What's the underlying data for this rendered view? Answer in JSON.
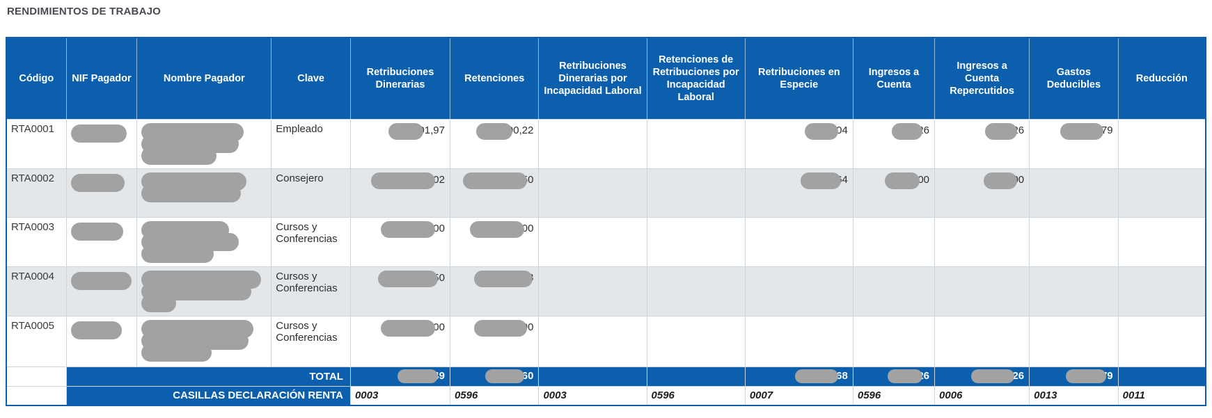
{
  "page_title": "RENDIMIENTOS DE TRABAJO",
  "colors": {
    "header_blue": "#0c5fad",
    "row_alt_gray": "#e3e7ea",
    "redaction_gray": "#a2a2a2",
    "grid_line": "#ccd5dd",
    "title_text": "#474c54",
    "body_text": "#2e2e2e"
  },
  "table": {
    "columns": [
      {
        "id": "codigo",
        "label": "Código"
      },
      {
        "id": "nif",
        "label": "NIF Pagador"
      },
      {
        "id": "nombre",
        "label": "Nombre Pagador"
      },
      {
        "id": "clave",
        "label": "Clave"
      },
      {
        "id": "ret_dinerarias",
        "label": "Retribuciones Dinerarias"
      },
      {
        "id": "retenciones",
        "label": "Retenciones"
      },
      {
        "id": "ret_din_incap",
        "label": "Retribuciones Dinerarias por Incapacidad Laboral"
      },
      {
        "id": "retenciones_incap",
        "label": "Retenciones de Retribuciones por Incapacidad Laboral"
      },
      {
        "id": "ret_especie",
        "label": "Retribuciones en Especie"
      },
      {
        "id": "ingresos_cuenta",
        "label": "Ingresos a Cuenta"
      },
      {
        "id": "ingresos_cuenta_rep",
        "label": "Ingresos a Cuenta Repercutidos"
      },
      {
        "id": "gastos_deducibles",
        "label": "Gastos Deducibles"
      },
      {
        "id": "reduccion",
        "label": "Reducción"
      }
    ],
    "rows": [
      {
        "codigo": "RTA0001",
        "nif_redacted": [
          "92%"
        ],
        "nombre_redacted": [
          "82%",
          "78%",
          "60%"
        ],
        "clave": "Empleado",
        "shaded": false,
        "values": {
          "ret_dinerarias": {
            "pill": 50,
            "visible": "01,97"
          },
          "retenciones": {
            "pill": 52,
            "visible": "00,22"
          },
          "ret_especie": {
            "pill": 48,
            "visible": ",04"
          },
          "ingresos_cuenta": {
            "pill": 44,
            "visible": "26"
          },
          "ingresos_cuenta_rep": {
            "pill": 46,
            "visible": "26"
          },
          "gastos_deducibles": {
            "pill": 62,
            "visible": ",79"
          }
        }
      },
      {
        "codigo": "RTA0002",
        "nif_redacted": [
          "88%"
        ],
        "nombre_redacted": [
          "84%",
          "80%"
        ],
        "clave": "Consejero",
        "shaded": true,
        "values": {
          "ret_dinerarias": {
            "pill": 92,
            "visible": ",02"
          },
          "retenciones": {
            "pill": 92,
            "visible": "50"
          },
          "ret_especie": {
            "pill": 58,
            "visible": "64"
          },
          "ingresos_cuenta": {
            "pill": 50,
            "visible": ",00"
          },
          "ingresos_cuenta_rep": {
            "pill": 48,
            "visible": "00"
          }
        }
      },
      {
        "codigo": "RTA0003",
        "nif_redacted": [
          "86%"
        ],
        "nombre_redacted": [
          "70%",
          "78%",
          "58%"
        ],
        "clave": "Cursos y Conferencias",
        "shaded": false,
        "values": {
          "ret_dinerarias": {
            "pill": 78,
            "visible": ",00"
          },
          "retenciones": {
            "pill": 78,
            "visible": ",00"
          }
        }
      },
      {
        "codigo": "RTA0004",
        "nif_redacted": [
          "100%"
        ],
        "nombre_redacted": [
          "96%",
          "88%",
          "28%"
        ],
        "clave": "Cursos y Conferencias",
        "shaded": true,
        "values": {
          "ret_dinerarias": {
            "pill": 86,
            "visible": "50"
          },
          "retenciones": {
            "pill": 84,
            "visible": "8"
          }
        }
      },
      {
        "codigo": "RTA0005",
        "nif_redacted": [
          "84%"
        ],
        "nombre_redacted": [
          "90%",
          "86%",
          "56%"
        ],
        "clave": "Cursos y Conferencias",
        "shaded": false,
        "values": {
          "ret_dinerarias": {
            "pill": 78,
            "visible": ",00"
          },
          "retenciones": {
            "pill": 76,
            "visible": "00"
          }
        }
      }
    ],
    "total_row": {
      "label": "TOTAL",
      "values": {
        "ret_dinerarias": {
          "pill": 58,
          "visible": "49"
        },
        "retenciones": {
          "pill": 56,
          "visible": ",60"
        },
        "ret_especie": {
          "pill": 62,
          "visible": ",68"
        },
        "ingresos_cuenta": {
          "pill": 50,
          "visible": "26"
        },
        "ingresos_cuenta_rep": {
          "pill": 62,
          "visible": ",26"
        },
        "gastos_deducibles": {
          "pill": 58,
          "visible": "79"
        }
      }
    },
    "casillas_row": {
      "label": "CASILLAS DECLARACIÓN RENTA",
      "values": {
        "ret_dinerarias": "0003",
        "retenciones": "0596",
        "ret_din_incap": "0003",
        "retenciones_incap": "0596",
        "ret_especie": "0007",
        "ingresos_cuenta": "0596",
        "ingresos_cuenta_rep": "0006",
        "gastos_deducibles": "0013",
        "reduccion": "0011"
      }
    }
  }
}
